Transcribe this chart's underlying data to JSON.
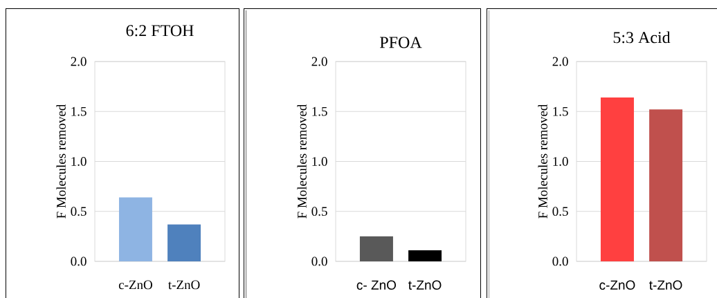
{
  "chart_data": [
    {
      "type": "bar",
      "title": "6:2 FTOH",
      "ylabel": "F Molecules removed",
      "categories": [
        "c-ZnO",
        "t-ZnO"
      ],
      "values": [
        0.64,
        0.37
      ],
      "colors": [
        "#8eb4e3",
        "#4f81bd"
      ],
      "ylim": [
        0,
        2.0
      ],
      "yticks": [
        {
          "value": 0,
          "label": "0.0"
        },
        {
          "value": 0.5,
          "label": "0.5"
        },
        {
          "value": 1.0,
          "label": "1.0"
        },
        {
          "value": 1.5,
          "label": "1.5"
        },
        {
          "value": 2.0,
          "label": "2.0"
        }
      ],
      "grid": "y"
    },
    {
      "type": "bar",
      "title": "PFOA",
      "ylabel": "F Molecules removed",
      "categories": [
        "c- ZnO",
        "t-ZnO"
      ],
      "values": [
        0.25,
        0.11
      ],
      "colors": [
        "#595959",
        "#000000"
      ],
      "ylim": [
        0,
        2.0
      ],
      "yticks": [
        {
          "value": 0,
          "label": "0.0"
        },
        {
          "value": 0.5,
          "label": "0.5"
        },
        {
          "value": 1.0,
          "label": "1.0"
        },
        {
          "value": 1.5,
          "label": "1.5"
        },
        {
          "value": 2.0,
          "label": "2.0"
        }
      ],
      "grid": "y"
    },
    {
      "type": "bar",
      "title": "5:3 Acid",
      "ylabel": "F Molecules removed",
      "categories": [
        "c-ZnO",
        "t-ZnO"
      ],
      "values": [
        1.64,
        1.52
      ],
      "colors": [
        "#ff4040",
        "#c0504d"
      ],
      "ylim": [
        0,
        2.0
      ],
      "yticks": [
        {
          "value": 0,
          "label": "0.0"
        },
        {
          "value": 0.5,
          "label": "0.5"
        },
        {
          "value": 1.0,
          "label": "1.0"
        },
        {
          "value": 1.5,
          "label": "1.5"
        },
        {
          "value": 2.0,
          "label": "2.0"
        }
      ],
      "grid": "y"
    }
  ]
}
